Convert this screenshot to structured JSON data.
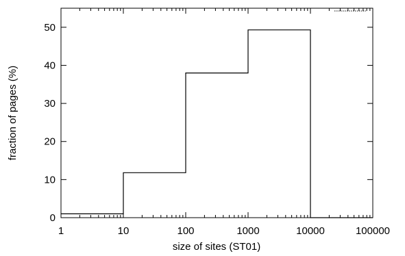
{
  "chart_data": {
    "type": "step",
    "xscale": "log",
    "xlim": [
      1,
      100000
    ],
    "ylim": [
      0,
      55
    ],
    "xlabel": "size of sites (ST01)",
    "ylabel": "fraction of pages (%)",
    "xticks": [
      1,
      10,
      100,
      1000,
      10000,
      100000
    ],
    "xtick_labels": [
      "1",
      "10",
      "100",
      "1000",
      "10000",
      "100000"
    ],
    "yticks": [
      0,
      10,
      20,
      30,
      40,
      50
    ],
    "ytick_labels": [
      "0",
      "10",
      "20",
      "30",
      "40",
      "50"
    ],
    "bins": [
      {
        "from": 1,
        "to": 10,
        "value": 1
      },
      {
        "from": 10,
        "to": 100,
        "value": 11.8
      },
      {
        "from": 100,
        "to": 1000,
        "value": 38
      },
      {
        "from": 1000,
        "to": 10000,
        "value": 49.3
      },
      {
        "from": 10000,
        "to": 100000,
        "value": 0
      }
    ],
    "legend": {
      "position": "top-right",
      "entries": [
        {
          "name": "",
          "style": "dotted"
        }
      ]
    },
    "grid": false
  }
}
